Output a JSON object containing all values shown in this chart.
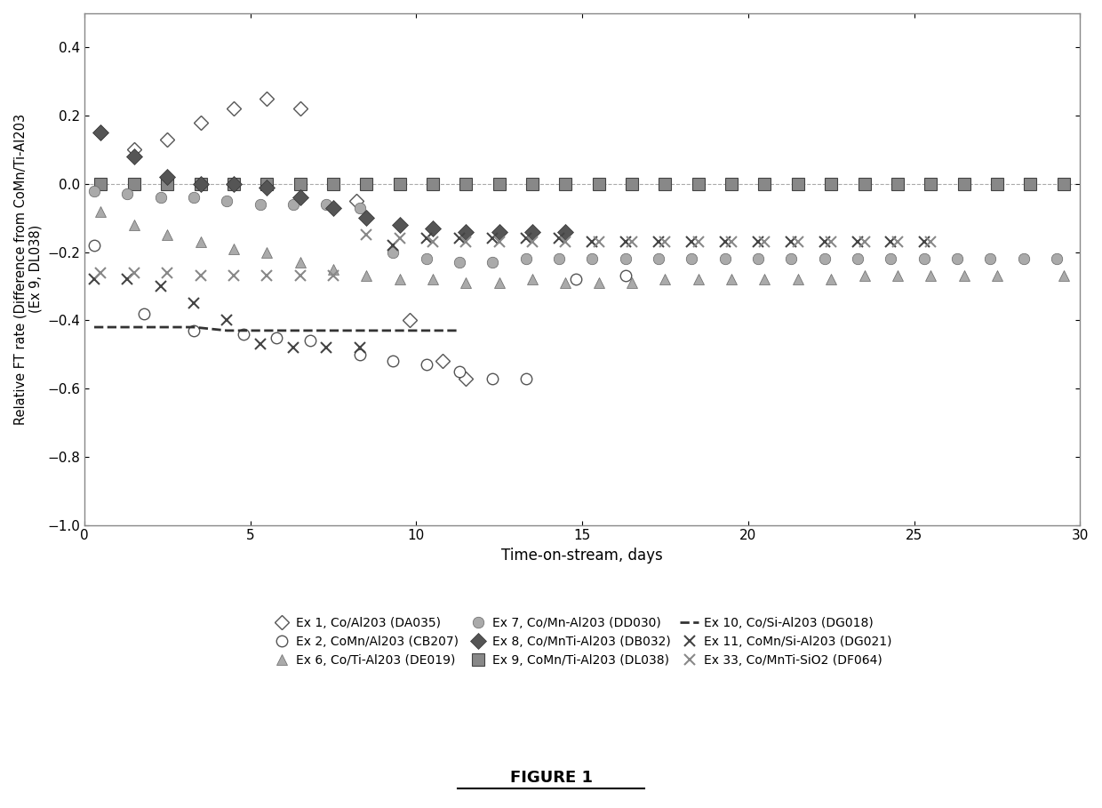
{
  "xlabel": "Time-on-stream, days",
  "ylabel": "Relative FT rate (Difference from CoMn/Ti-Al203\n(Ex 9, DL038)",
  "xlim": [
    0,
    30
  ],
  "ylim": [
    -1,
    0.5
  ],
  "yticks": [
    -1,
    -0.8,
    -0.6,
    -0.4,
    -0.2,
    0,
    0.2,
    0.4
  ],
  "xticks": [
    0,
    5,
    10,
    15,
    20,
    25,
    30
  ],
  "figure_title": "FIGURE 1",
  "ex1_x": [
    0.5,
    1.5,
    2.5,
    3.5,
    4.5,
    5.5,
    6.5,
    8.2,
    9.8,
    10.8,
    11.5
  ],
  "ex1_y": [
    0.15,
    0.1,
    0.13,
    0.18,
    0.22,
    0.25,
    0.22,
    -0.05,
    -0.4,
    -0.52,
    -0.57
  ],
  "ex2_x": [
    0.3,
    1.8,
    3.3,
    4.8,
    5.8,
    6.8,
    8.3,
    9.3,
    10.3,
    11.3,
    12.3,
    13.3,
    14.8,
    16.3
  ],
  "ex2_y": [
    -0.18,
    -0.38,
    -0.43,
    -0.44,
    -0.45,
    -0.46,
    -0.5,
    -0.52,
    -0.53,
    -0.55,
    -0.57,
    -0.57,
    -0.28,
    -0.27
  ],
  "ex6_x": [
    0.5,
    1.5,
    2.5,
    3.5,
    4.5,
    5.5,
    6.5,
    7.5,
    8.5,
    9.5,
    10.5,
    11.5,
    12.5,
    13.5,
    14.5,
    15.5,
    16.5,
    17.5,
    18.5,
    19.5,
    20.5,
    21.5,
    22.5,
    23.5,
    24.5,
    25.5,
    26.5,
    27.5,
    29.5
  ],
  "ex6_y": [
    -0.08,
    -0.12,
    -0.15,
    -0.17,
    -0.19,
    -0.2,
    -0.23,
    -0.25,
    -0.27,
    -0.28,
    -0.28,
    -0.29,
    -0.29,
    -0.28,
    -0.29,
    -0.29,
    -0.29,
    -0.28,
    -0.28,
    -0.28,
    -0.28,
    -0.28,
    -0.28,
    -0.27,
    -0.27,
    -0.27,
    -0.27,
    -0.27,
    -0.27
  ],
  "ex7_x": [
    0.3,
    1.3,
    2.3,
    3.3,
    4.3,
    5.3,
    6.3,
    7.3,
    8.3,
    9.3,
    10.3,
    11.3,
    12.3,
    13.3,
    14.3,
    15.3,
    16.3,
    17.3,
    18.3,
    19.3,
    20.3,
    21.3,
    22.3,
    23.3,
    24.3,
    25.3,
    26.3,
    27.3,
    28.3,
    29.3
  ],
  "ex7_y": [
    -0.02,
    -0.03,
    -0.04,
    -0.04,
    -0.05,
    -0.06,
    -0.06,
    -0.06,
    -0.07,
    -0.2,
    -0.22,
    -0.23,
    -0.23,
    -0.22,
    -0.22,
    -0.22,
    -0.22,
    -0.22,
    -0.22,
    -0.22,
    -0.22,
    -0.22,
    -0.22,
    -0.22,
    -0.22,
    -0.22,
    -0.22,
    -0.22,
    -0.22,
    -0.22
  ],
  "ex8_x": [
    0.5,
    1.5,
    2.5,
    3.5,
    4.5,
    5.5,
    6.5,
    7.5,
    8.5,
    9.5,
    10.5,
    11.5,
    12.5,
    13.5,
    14.5
  ],
  "ex8_y": [
    0.15,
    0.08,
    0.02,
    0.0,
    0.0,
    -0.01,
    -0.04,
    -0.07,
    -0.1,
    -0.12,
    -0.13,
    -0.14,
    -0.14,
    -0.14,
    -0.14
  ],
  "ex9_x": [
    0.5,
    1.5,
    2.5,
    3.5,
    4.5,
    5.5,
    6.5,
    7.5,
    8.5,
    9.5,
    10.5,
    11.5,
    12.5,
    13.5,
    14.5,
    15.5,
    16.5,
    17.5,
    18.5,
    19.5,
    20.5,
    21.5,
    22.5,
    23.5,
    24.5,
    25.5,
    26.5,
    27.5,
    28.5,
    29.5
  ],
  "ex9_y": [
    0.0,
    0.0,
    0.0,
    0.0,
    0.0,
    0.0,
    0.0,
    0.0,
    0.0,
    0.0,
    0.0,
    0.0,
    0.0,
    0.0,
    0.0,
    0.0,
    0.0,
    0.0,
    0.0,
    0.0,
    0.0,
    0.0,
    0.0,
    0.0,
    0.0,
    0.0,
    0.0,
    0.0,
    0.0,
    0.0
  ],
  "ex10_x": [
    0.3,
    1.3,
    2.3,
    3.3,
    4.3,
    5.3,
    6.3,
    7.3,
    8.3,
    9.3,
    10.3,
    11.3
  ],
  "ex10_y": [
    -0.42,
    -0.42,
    -0.42,
    -0.42,
    -0.43,
    -0.43,
    -0.43,
    -0.43,
    -0.43,
    -0.43,
    -0.43,
    -0.43
  ],
  "ex11_x": [
    0.3,
    1.3,
    2.3,
    3.3,
    4.3,
    5.3,
    6.3,
    7.3,
    8.3,
    9.3,
    10.3,
    11.3,
    12.3,
    13.3,
    14.3,
    15.3,
    16.3,
    17.3,
    18.3,
    19.3,
    20.3,
    21.3,
    22.3,
    23.3,
    24.3,
    25.3
  ],
  "ex11_y": [
    -0.28,
    -0.28,
    -0.3,
    -0.35,
    -0.4,
    -0.47,
    -0.48,
    -0.48,
    -0.48,
    -0.18,
    -0.16,
    -0.16,
    -0.16,
    -0.16,
    -0.16,
    -0.17,
    -0.17,
    -0.17,
    -0.17,
    -0.17,
    -0.17,
    -0.17,
    -0.17,
    -0.17,
    -0.17,
    -0.17
  ],
  "ex33_x": [
    0.5,
    1.5,
    2.5,
    3.5,
    4.5,
    5.5,
    6.5,
    7.5,
    8.5,
    9.5,
    10.5,
    11.5,
    12.5,
    13.5,
    14.5,
    15.5,
    16.5,
    17.5,
    18.5,
    19.5,
    20.5,
    21.5,
    22.5,
    23.5,
    24.5,
    25.5
  ],
  "ex33_y": [
    -0.26,
    -0.26,
    -0.26,
    -0.27,
    -0.27,
    -0.27,
    -0.27,
    -0.27,
    -0.15,
    -0.16,
    -0.17,
    -0.17,
    -0.17,
    -0.17,
    -0.17,
    -0.17,
    -0.17,
    -0.17,
    -0.17,
    -0.17,
    -0.17,
    -0.17,
    -0.17,
    -0.17,
    -0.17,
    -0.17
  ],
  "label1": "Ex 1, Co/Al203 (DA035)",
  "label2": "Ex 2, CoMn/Al203 (CB207)",
  "label6": "Ex 6, Co/Ti-Al203 (DE019)",
  "label7": "Ex 7, Co/Mn-Al203 (DD030)",
  "label8": "Ex 8, Co/MnTi-Al203 (DB032)",
  "label9": "Ex 9, CoMn/Ti-Al203 (DL038)",
  "label10": "Ex 10, Co/Si-Al203 (DG018)",
  "label11": "Ex 11, CoMn/Si-Al203 (DG021)",
  "label33": "Ex 33, Co/MnTi-SiO2 (DF064)"
}
